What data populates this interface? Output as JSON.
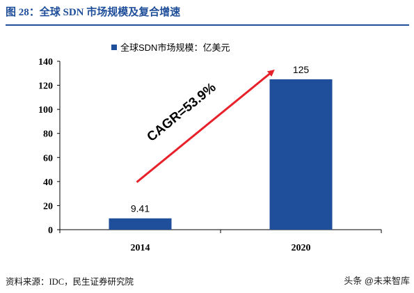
{
  "figure": {
    "title": "图 28：全球 SDN 市场规模及复合增速",
    "source": "资料来源：IDC，民生证券研究院",
    "watermark": "头条 @未来智库"
  },
  "colors": {
    "accent": "#1f4e9a",
    "bar": "#1f4e9a",
    "arrow": "#e8202a"
  },
  "chart_data": {
    "type": "bar",
    "title": "",
    "xlabel": "",
    "ylabel": "",
    "categories": [
      "2014",
      "2020"
    ],
    "series": [
      {
        "name": "全球SDN市场规模：亿美元",
        "values": [
          9.41,
          125
        ]
      }
    ],
    "data_labels": [
      "9.41",
      "125"
    ],
    "ylim": [
      0,
      140
    ],
    "yticks": [
      0,
      20,
      40,
      60,
      80,
      100,
      120,
      140
    ],
    "grid": false,
    "legend_position": "top",
    "annotation": {
      "text": "CAGR=53.9%",
      "style": "arrow from 2014 bar toward 2020 bar"
    }
  }
}
